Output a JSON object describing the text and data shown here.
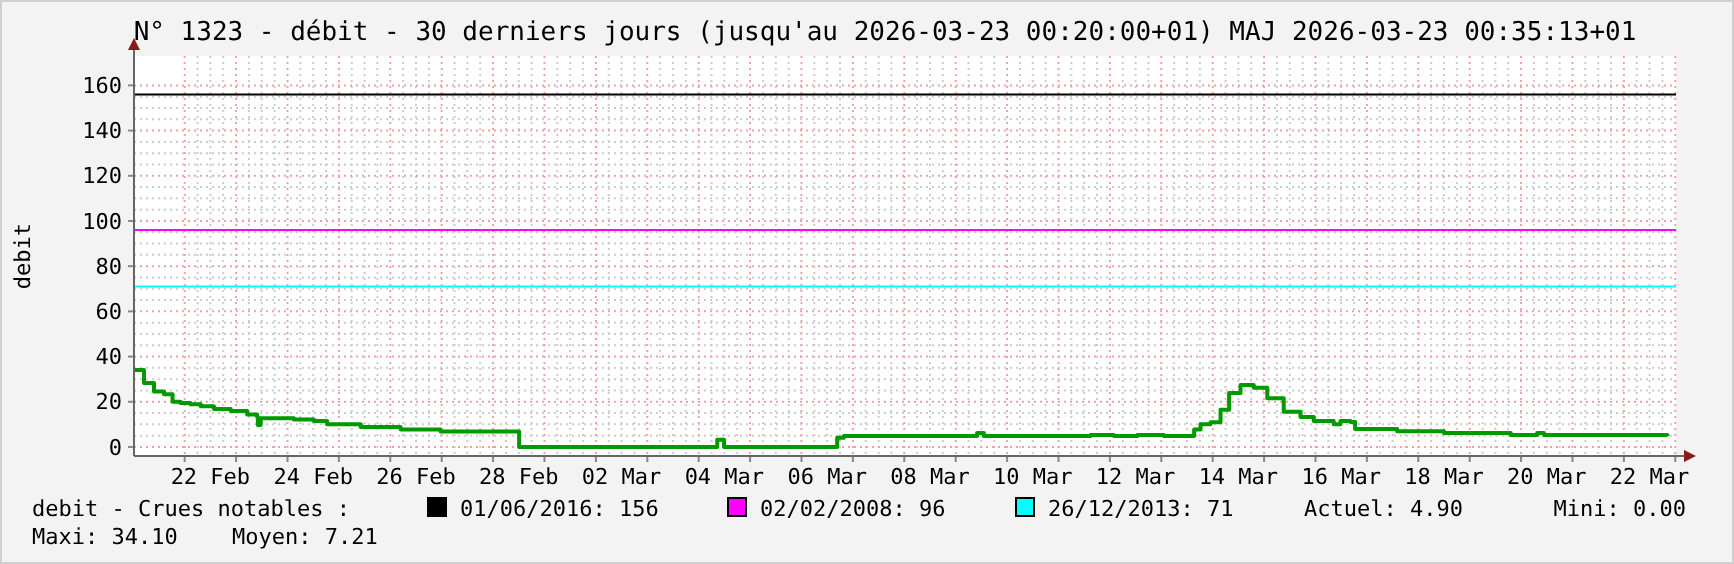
{
  "chart_data": {
    "type": "step",
    "title": "N° 1323 - débit - 30 derniers jours (jusqu'au 2026-03-23 00:20:00+01) MAJ 2026-03-23 00:35:13+01",
    "ylabel": "debit",
    "annotations": [
      "debit - Crues notables :",
      "Actuel: 4.90",
      "Mini: 0.00",
      "Maxi: 34.10",
      "Moyen: 7.21"
    ],
    "xlim": [
      "2026-02-21T00:20",
      "2026-03-23T00:20"
    ],
    "xticks": [
      {
        "value": "2026-02-22T12:00",
        "label": "22 Feb"
      },
      {
        "value": "2026-02-24T12:00",
        "label": "24 Feb"
      },
      {
        "value": "2026-02-26T12:00",
        "label": "26 Feb"
      },
      {
        "value": "2026-02-28T12:00",
        "label": "28 Feb"
      },
      {
        "value": "2026-03-02T12:00",
        "label": "02 Mar"
      },
      {
        "value": "2026-03-04T12:00",
        "label": "04 Mar"
      },
      {
        "value": "2026-03-06T12:00",
        "label": "06 Mar"
      },
      {
        "value": "2026-03-08T12:00",
        "label": "08 Mar"
      },
      {
        "value": "2026-03-10T12:00",
        "label": "10 Mar"
      },
      {
        "value": "2026-03-12T12:00",
        "label": "12 Mar"
      },
      {
        "value": "2026-03-14T12:00",
        "label": "14 Mar"
      },
      {
        "value": "2026-03-16T12:00",
        "label": "16 Mar"
      },
      {
        "value": "2026-03-18T12:00",
        "label": "18 Mar"
      },
      {
        "value": "2026-03-20T12:00",
        "label": "20 Mar"
      },
      {
        "value": "2026-03-22T12:00",
        "label": "22 Mar"
      },
      {
        "value": "2026-02-22T00:00",
        "label": null
      },
      {
        "value": "2026-02-23T00:00",
        "label": null
      },
      {
        "value": "2026-02-24T00:00",
        "label": null
      },
      {
        "value": "2026-02-25T00:00",
        "label": null
      },
      {
        "value": "2026-02-26T00:00",
        "label": null
      },
      {
        "value": "2026-02-27T00:00",
        "label": null
      },
      {
        "value": "2026-02-28T00:00",
        "label": null
      },
      {
        "value": "2026-03-01T00:00",
        "label": null
      },
      {
        "value": "2026-03-02T00:00",
        "label": null
      },
      {
        "value": "2026-03-03T00:00",
        "label": null
      },
      {
        "value": "2026-03-04T00:00",
        "label": null
      },
      {
        "value": "2026-03-05T00:00",
        "label": null
      },
      {
        "value": "2026-03-06T00:00",
        "label": null
      },
      {
        "value": "2026-03-07T00:00",
        "label": null
      },
      {
        "value": "2026-03-08T00:00",
        "label": null
      },
      {
        "value": "2026-03-09T00:00",
        "label": null
      },
      {
        "value": "2026-03-10T00:00",
        "label": null
      },
      {
        "value": "2026-03-11T00:00",
        "label": null
      },
      {
        "value": "2026-03-12T00:00",
        "label": null
      },
      {
        "value": "2026-03-13T00:00",
        "label": null
      },
      {
        "value": "2026-03-14T00:00",
        "label": null
      },
      {
        "value": "2026-03-15T00:00",
        "label": null
      },
      {
        "value": "2026-03-16T00:00",
        "label": null
      },
      {
        "value": "2026-03-17T00:00",
        "label": null
      },
      {
        "value": "2026-03-18T00:00",
        "label": null
      },
      {
        "value": "2026-03-19T00:00",
        "label": null
      },
      {
        "value": "2026-03-20T00:00",
        "label": null
      },
      {
        "value": "2026-03-21T00:00",
        "label": null
      },
      {
        "value": "2026-03-22T00:00",
        "label": null
      },
      {
        "value": "2026-03-23T00:00",
        "label": null
      }
    ],
    "ylim": [
      -4,
      173
    ],
    "yticks": [
      0,
      20,
      40,
      60,
      80,
      100,
      120,
      140,
      160
    ],
    "grid": true,
    "legend": "bottom",
    "marker": "none",
    "line_style": "solid",
    "ref_lines": [
      {
        "axis": "y",
        "value": 156,
        "label": "01/06/2016: 156",
        "color": "#000000"
      },
      {
        "axis": "y",
        "value": 96,
        "label": "02/02/2008: 96",
        "color": "#ff00ff"
      },
      {
        "axis": "y",
        "value": 71,
        "label": "26/12/2013: 71",
        "color": "#00ffff"
      }
    ],
    "series": [
      {
        "color": "#009900",
        "x": [
          "2026-02-21T00:20",
          "2026-02-21T05:00",
          "2026-02-21T09:40",
          "2026-02-21T14:20",
          "2026-02-21T18:20",
          "2026-02-21T22:00",
          "2026-02-22T02:40",
          "2026-02-22T07:30",
          "2026-02-22T13:40",
          "2026-02-22T21:30",
          "2026-02-23T05:10",
          "2026-02-23T09:50",
          "2026-02-23T10:10",
          "2026-02-23T11:30",
          "2026-02-23T17:40",
          "2026-02-24T03:00",
          "2026-02-24T12:20",
          "2026-02-24T18:30",
          "2026-02-25T00:50",
          "2026-02-25T10:10",
          "2026-02-26T04:50",
          "2026-02-26T23:30",
          "2026-02-28T03:30",
          "2026-02-28T11:20",
          "2026-02-28T12:10",
          "2026-03-04T05:40",
          "2026-03-04T08:40",
          "2026-03-04T11:50",
          "2026-03-06T13:30",
          "2026-03-06T16:40",
          "2026-03-06T19:50",
          "2026-03-09T08:30",
          "2026-03-09T10:00",
          "2026-03-09T13:10",
          "2026-03-11T13:30",
          "2026-03-11T15:00",
          "2026-03-12T01:50",
          "2026-03-12T12:50",
          "2026-03-13T01:10",
          "2026-03-13T12:10",
          "2026-03-13T15:20",
          "2026-03-13T18:20",
          "2026-03-13T23:00",
          "2026-03-14T03:40",
          "2026-03-14T07:40",
          "2026-03-14T13:00",
          "2026-03-14T19:10",
          "2026-03-15T01:30",
          "2026-03-15T09:10",
          "2026-03-15T17:00",
          "2026-03-15T23:10",
          "2026-03-16T08:30",
          "2026-03-16T11:40",
          "2026-03-16T16:20",
          "2026-03-16T18:30",
          "2026-03-17T12:40",
          "2026-03-17T14:10",
          "2026-03-18T10:30",
          "2026-03-18T12:00",
          "2026-03-19T17:40",
          "2026-03-19T19:10",
          "2026-03-20T06:00",
          "2026-03-20T07:30",
          "2026-03-20T10:40",
          "2026-03-22T20:20"
        ],
        "values": [
          34.1,
          28.3,
          24.5,
          23.3,
          20,
          19.5,
          18.9,
          18,
          16.8,
          15.9,
          14.4,
          13.3,
          9.7,
          12.7,
          12.7,
          12.1,
          11.5,
          10,
          10,
          8.8,
          7.7,
          6.8,
          6.8,
          6.8,
          0,
          0,
          3.2,
          0,
          0,
          4.1,
          4.9,
          4.9,
          6.2,
          4.9,
          4.9,
          5.3,
          4.9,
          5.3,
          4.9,
          4.9,
          7.7,
          10,
          10.9,
          16.5,
          23.9,
          27.4,
          26.2,
          21.5,
          15.6,
          13.3,
          11.5,
          10,
          11.5,
          11,
          8,
          8,
          7,
          7,
          6.2,
          6.2,
          5.3,
          5.3,
          6.2,
          5.3,
          4.9
        ]
      }
    ]
  }
}
